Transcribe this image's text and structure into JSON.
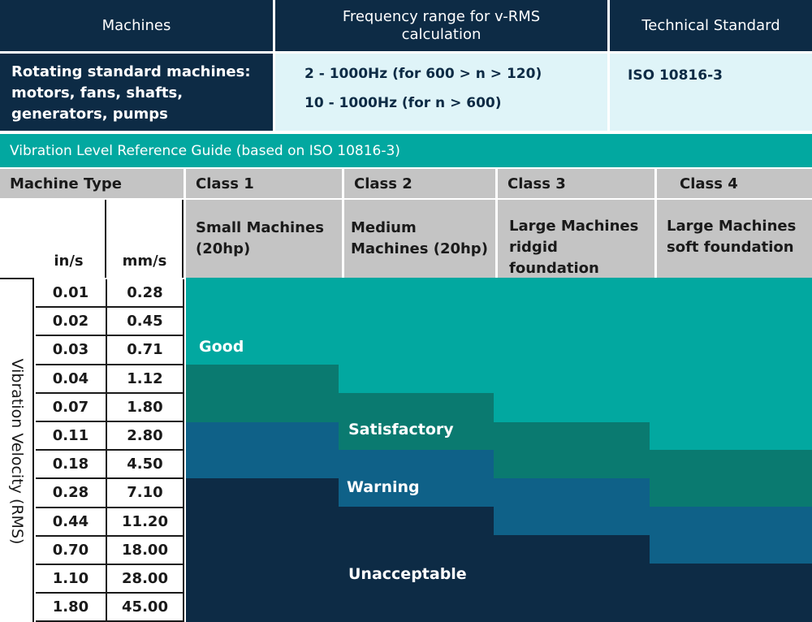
{
  "top_table": {
    "headers": [
      "Machines",
      "Frequency range for v-RMS calculation",
      "Technical Standard"
    ],
    "machines_text": "Rotating standard machines: motors, fans, shafts, generators, pumps",
    "frequency_lines": [
      "2 - 1000Hz (for 600 > n > 120)",
      "10 - 1000Hz (for n > 600)"
    ],
    "standard": "ISO 10816-3"
  },
  "guide": {
    "title": "Vibration Level Reference Guide (based on ISO 10816-3)",
    "machine_type_label": "Machine Type",
    "unit_in": "in/s",
    "unit_mm": "mm/s",
    "axis_label": "Vibration Velocity (RMS)",
    "classes": [
      {
        "name": "Class 1",
        "desc": "Small Machines (20hp)"
      },
      {
        "name": "Class 2",
        "desc": "Medium Machines (20hp)"
      },
      {
        "name": "Class 3",
        "desc": "Large Machines ridgid foundation"
      },
      {
        "name": "Class 4",
        "desc": "Large Machines soft foundation"
      }
    ],
    "in_s": [
      "0.01",
      "0.02",
      "0.03",
      "0.04",
      "0.07",
      "0.11",
      "0.18",
      "0.28",
      "0.44",
      "0.70",
      "1.10",
      "1.80"
    ],
    "mm_s": [
      "0.28",
      "0.45",
      "0.71",
      "1.12",
      "1.80",
      "2.80",
      "4.50",
      "7.10",
      "11.20",
      "18.00",
      "28.00",
      "45.00"
    ],
    "zones": [
      {
        "label": "Good",
        "color": "#02a8a0"
      },
      {
        "label": "Satisfactory",
        "color": "#0a7a70"
      },
      {
        "label": "Warning",
        "color": "#0f6188"
      },
      {
        "label": "Unacceptable",
        "color": "#0d2b45"
      }
    ]
  }
}
